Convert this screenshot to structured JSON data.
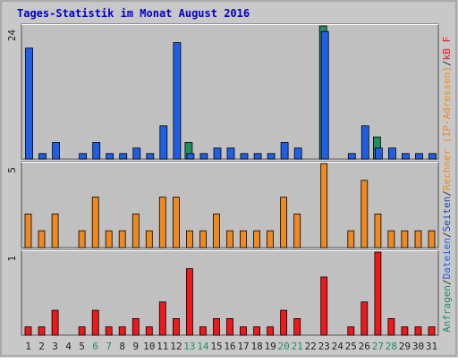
{
  "chart_data": {
    "type": "bar",
    "title": "Tages-Statistik im Monat August 2016",
    "categories": [
      "1",
      "2",
      "3",
      "4",
      "5",
      "6",
      "7",
      "8",
      "9",
      "10",
      "11",
      "12",
      "13",
      "14",
      "15",
      "16",
      "17",
      "18",
      "19",
      "20",
      "21",
      "22",
      "23",
      "24",
      "25",
      "26",
      "27",
      "28",
      "29",
      "30",
      "31"
    ],
    "weekend_days": [
      "6",
      "7",
      "13",
      "14",
      "20",
      "21",
      "27",
      "28"
    ],
    "panels": [
      {
        "id": "top",
        "ymax_label": "24",
        "ylim": [
          0,
          24
        ],
        "series": [
          {
            "name": "Anfragen",
            "color": "#1f8f5f",
            "values": [
              0,
              0,
              0,
              0,
              0,
              0,
              0,
              0,
              0,
              0,
              0,
              0,
              3,
              0,
              0,
              0,
              0,
              0,
              0,
              0,
              0,
              0,
              24,
              0,
              0,
              0,
              4,
              0,
              0,
              0,
              0
            ]
          },
          {
            "name": "Dateien",
            "color": "#1f5fe6",
            "values": [
              20,
              1,
              3,
              0,
              1,
              3,
              1,
              1,
              2,
              1,
              6,
              21,
              1,
              1,
              2,
              2,
              1,
              1,
              1,
              3,
              2,
              0,
              23,
              0,
              1,
              6,
              2,
              2,
              1,
              1,
              1
            ]
          },
          {
            "name": "Seiten",
            "color": "#1a4aa8",
            "values": [
              0,
              0,
              0,
              0,
              0,
              0,
              0,
              0,
              0,
              0,
              0,
              0,
              0,
              0,
              0,
              0,
              0,
              0,
              0,
              0,
              0,
              0,
              0,
              0,
              0,
              0,
              0,
              0,
              0,
              0,
              0
            ]
          }
        ]
      },
      {
        "id": "middle",
        "ymax_label": "5",
        "ylim": [
          0,
          5
        ],
        "series": [
          {
            "name": "Rechner (IP-Adressen)",
            "color": "#f08a1e",
            "values": [
              2,
              1,
              2,
              0,
              1,
              3,
              1,
              1,
              2,
              1,
              3,
              3,
              1,
              1,
              2,
              1,
              1,
              1,
              1,
              3,
              2,
              0,
              5,
              0,
              1,
              4,
              2,
              1,
              1,
              1,
              1
            ]
          }
        ]
      },
      {
        "id": "bottom",
        "ymax_label": "1",
        "ylim": [
          0,
          1
        ],
        "series": [
          {
            "name": "kB F",
            "color": "#f01818",
            "values": [
              0.1,
              0.1,
              0.3,
              0,
              0.1,
              0.3,
              0.1,
              0.1,
              0.2,
              0.1,
              0.4,
              0.2,
              0.8,
              0.1,
              0.2,
              0.2,
              0.1,
              0.1,
              0.1,
              0.3,
              0.2,
              0,
              0.7,
              0,
              0.1,
              0.4,
              1.0,
              0.2,
              0.1,
              0.1,
              0.1
            ]
          }
        ]
      }
    ],
    "right_legend": [
      {
        "text": "Anfragen",
        "color": "#1f8f5f"
      },
      {
        "text": "/",
        "color": "#333333"
      },
      {
        "text": "Dateien",
        "color": "#1f5fe6"
      },
      {
        "text": "/",
        "color": "#333333"
      },
      {
        "text": "Seiten",
        "color": "#1a4aa8"
      },
      {
        "text": "/",
        "color": "#333333"
      },
      {
        "text": "Rechner (IP-Adressen)",
        "color": "#f08a1e"
      },
      {
        "text": "/",
        "color": "#333333"
      },
      {
        "text": "kB F",
        "color": "#f01818"
      }
    ]
  }
}
